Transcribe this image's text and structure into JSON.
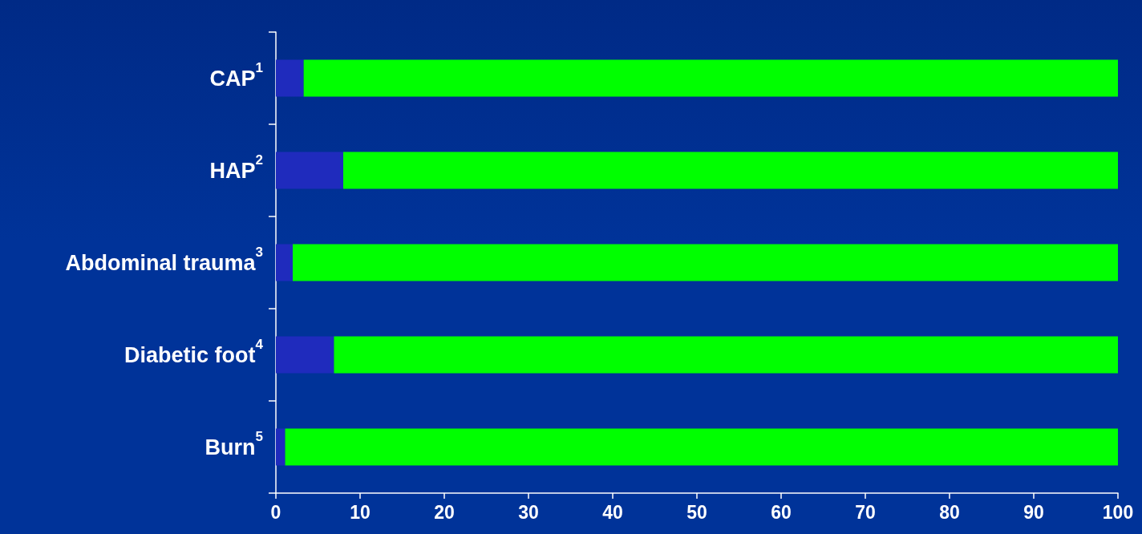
{
  "chart_data": {
    "type": "bar",
    "orientation": "horizontal",
    "stacked": true,
    "categories": [
      "CAP$^{1}$",
      "HAP$^{2}$",
      "Abdominal trauma$^{3}$",
      "Diabetic foot$^{4}$",
      "Burn$^{5}$"
    ],
    "series": [
      {
        "color": "#1f2bbd",
        "values": [
          3.3,
          8,
          2,
          6.9,
          1.1
        ]
      },
      {
        "color": "#00ff00",
        "values": [
          96.7,
          92,
          98,
          93.1,
          98.9
        ]
      }
    ],
    "xlim": [
      0,
      100
    ],
    "xticks": [
      0,
      10,
      20,
      30,
      40,
      50,
      60,
      70,
      80,
      90,
      100
    ],
    "grid": false
  }
}
